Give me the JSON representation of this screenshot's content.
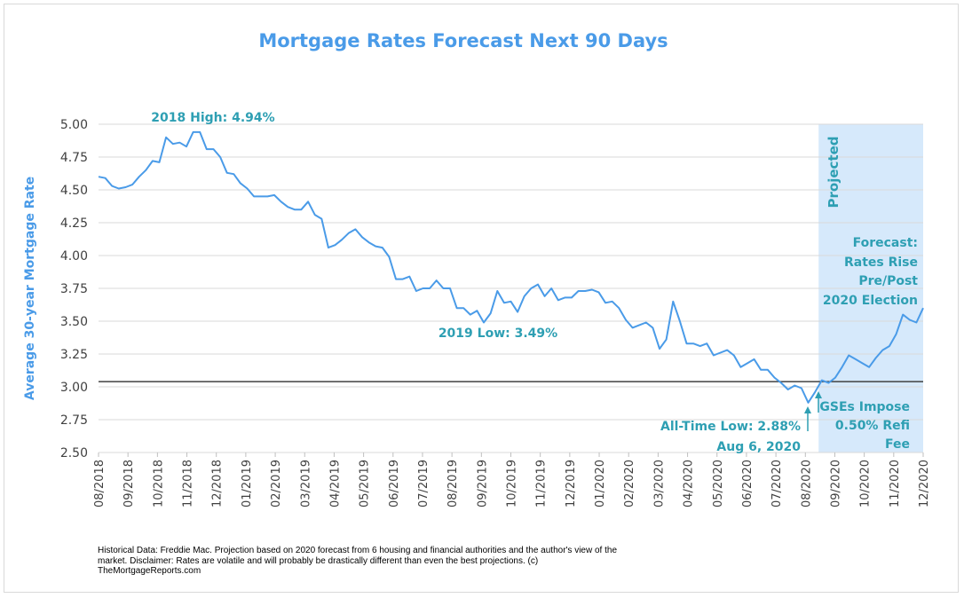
{
  "chart_data": {
    "type": "line",
    "title": "Mortgage Rates Forecast Next 90 Days",
    "ylabel": "Average 30-year Mortgage Rate",
    "xlabel": "",
    "ylim": [
      2.5,
      5.0
    ],
    "yticks": [
      "5.00",
      "4.75",
      "4.50",
      "4.25",
      "4.00",
      "3.75",
      "3.50",
      "3.25",
      "3.00",
      "2.75",
      "2.50"
    ],
    "x_tick_labels": [
      "08/2018",
      "09/2018",
      "10/2018",
      "11/2018",
      "12/2018",
      "01/2019",
      "02/2019",
      "03/2019",
      "04/2019",
      "05/2019",
      "06/2019",
      "07/2019",
      "08/2019",
      "09/2019",
      "10/2019",
      "11/2019",
      "12/2019",
      "01/2020",
      "02/2020",
      "03/2020",
      "04/2020",
      "05/2020",
      "06/2020",
      "07/2020",
      "08/2020",
      "09/2020",
      "10/2020",
      "11/2020",
      "12/2020"
    ],
    "grid": true,
    "color": "#4a9be8",
    "reference_line": {
      "value": 3.04,
      "color": "#404040"
    },
    "projected_region": {
      "label": "Projected",
      "start": "08/2020",
      "color": "#d6e9fb"
    },
    "series": [
      {
        "values": [
          4.6,
          4.59,
          4.53,
          4.51,
          4.52,
          4.54,
          4.6,
          4.65,
          4.72,
          4.71,
          4.9,
          4.85,
          4.86,
          4.83,
          4.94,
          4.94,
          4.81,
          4.81,
          4.75,
          4.63,
          4.62,
          4.55,
          4.51,
          4.45,
          4.45,
          4.45,
          4.46,
          4.41,
          4.37,
          4.35,
          4.35,
          4.41,
          4.31,
          4.28,
          4.06,
          4.08,
          4.12,
          4.17,
          4.2,
          4.14,
          4.1,
          4.07,
          4.06,
          3.99,
          3.82,
          3.82,
          3.84,
          3.73,
          3.75,
          3.75,
          3.81,
          3.75,
          3.75,
          3.6,
          3.6,
          3.55,
          3.58,
          3.49,
          3.56,
          3.73,
          3.64,
          3.65,
          3.57,
          3.69,
          3.75,
          3.78,
          3.69,
          3.75,
          3.66,
          3.68,
          3.68,
          3.73,
          3.73,
          3.74,
          3.72,
          3.64,
          3.65,
          3.6,
          3.51,
          3.45,
          3.47,
          3.49,
          3.45,
          3.29,
          3.36,
          3.65,
          3.5,
          3.33,
          3.33,
          3.31,
          3.33,
          3.24,
          3.26,
          3.28,
          3.24,
          3.15,
          3.18,
          3.21,
          3.13,
          3.13,
          3.07,
          3.03,
          2.98,
          3.01,
          2.99,
          2.88,
          2.96,
          3.05,
          3.03,
          3.07,
          3.15,
          3.24,
          3.21,
          3.18,
          3.15,
          3.22,
          3.28,
          3.31,
          3.4,
          3.55,
          3.51,
          3.49,
          3.6
        ]
      }
    ],
    "annotations": {
      "high": "2018 High: 4.94%",
      "low2019": "2019 Low: 3.49%",
      "alltime_line1": "All-Time Low: 2.88%",
      "alltime_line2": "Aug 6, 2020",
      "gse_line1": "GSEs Impose",
      "gse_line2": "0.50% Refi",
      "gse_line3": "Fee",
      "forecast_line1": "Forecast:",
      "forecast_line2": "Rates Rise",
      "forecast_line3": "Pre/Post",
      "forecast_line4": "2020 Election"
    }
  },
  "footnote": "Historical Data: Freddie Mac.  Projection based on 2020 forecast from 6 housing and financial authorities and the author's view of the market. Disclaimer: Rates are volatile and will probably be drastically different than even the best projections. (c) TheMortgageReports.com"
}
